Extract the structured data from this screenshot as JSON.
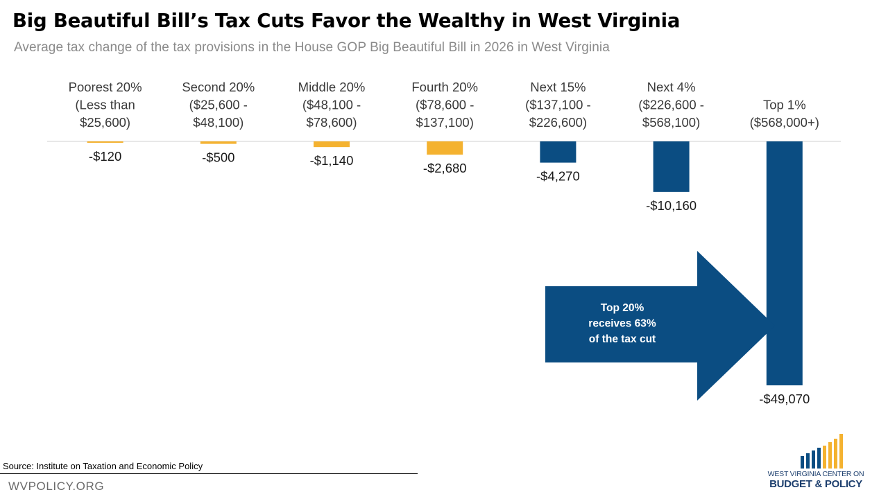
{
  "title": "Big Beautiful Bill’s Tax Cuts Favor the Wealthy in West Virginia",
  "subtitle": "Average tax change of the tax provisions in the House GOP Big Beautiful Bill in 2026 in West Virginia",
  "colors": {
    "bottom": "#F4B230",
    "top": "#0B4D82",
    "axis": "#d9d9d9"
  },
  "chart_data": {
    "type": "bar",
    "title": "Big Beautiful Bill’s Tax Cuts Favor the Wealthy in West Virginia",
    "subtitle": "Average tax change of the tax provisions in the House GOP Big Beautiful Bill in 2026 in West Virginia",
    "categories": [
      [
        "Poorest 20%",
        "(Less than",
        "$25,600)"
      ],
      [
        "Second 20%",
        "($25,600 -",
        "$48,100)"
      ],
      [
        "Middle 20%",
        "($48,100 -",
        "$78,600)"
      ],
      [
        "Fourth 20%",
        "($78,600 -",
        "$137,100)"
      ],
      [
        "Next 15%",
        "($137,100 -",
        "$226,600)"
      ],
      [
        "Next 4%",
        "($226,600 -",
        "$568,100)"
      ],
      [
        "Top 1%",
        "($568,000+)"
      ]
    ],
    "values": [
      -120,
      -500,
      -1140,
      -2680,
      -4270,
      -10160,
      -49070
    ],
    "data_labels": [
      "-$120",
      "-$500",
      "-$1,140",
      "-$2,680",
      "-$4,270",
      "-$10,160",
      "-$49,070"
    ],
    "bar_colors": [
      "#F4B230",
      "#F4B230",
      "#F4B230",
      "#F4B230",
      "#0B4D82",
      "#0B4D82",
      "#0B4D82"
    ],
    "ylim": [
      -49070,
      0
    ],
    "xlabel": "",
    "ylabel": "",
    "grid": false,
    "legend": "none",
    "annotation": [
      "Top 20%",
      "receives 63%",
      "of the tax cut"
    ]
  },
  "footer": {
    "source": "Source: Institute on Taxation and Economic Policy",
    "site": "WVPOLICY.ORG"
  },
  "logo": {
    "line1": "WEST VIRGINIA CENTER ON",
    "line2": "BUDGET & POLICY"
  }
}
